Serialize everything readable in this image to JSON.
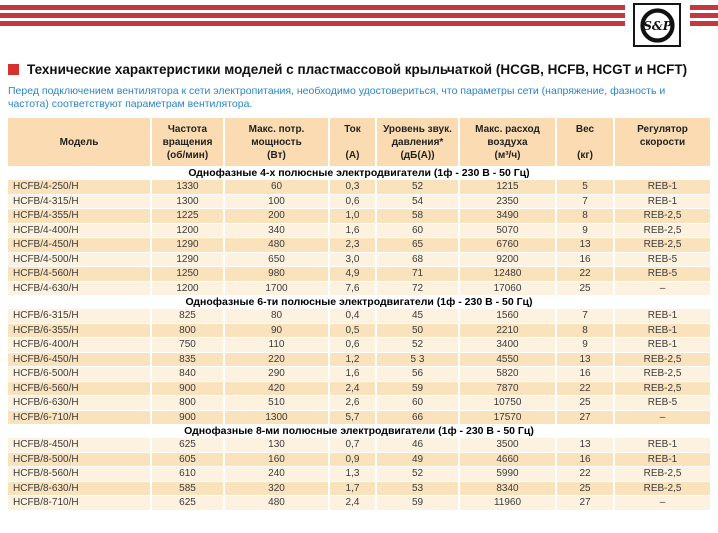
{
  "brand": {
    "logo_text": "S&P"
  },
  "header": {
    "title": "Технические характеристики моделей с пластмассовой крыльчаткой (HCGB, HCFB, HCGT и HCFT)",
    "note": "Перед подключением вентилятора к сети электропитания, необходимо удостовериться, что параметры сети (напряжение, фазность и частота) соответствуют параметрам вентилятора."
  },
  "colors": {
    "brand_red": "#c23a40",
    "bullet_red": "#d8312e",
    "note_blue": "#2b85c8",
    "table_header_bg": "#fbdcb2",
    "row_dark": "#fae2bd",
    "row_light": "#fdf2e0"
  },
  "table": {
    "columns": [
      {
        "lines": [
          "Модель"
        ]
      },
      {
        "lines": [
          "Частота",
          "вращения",
          "(об/мин)"
        ]
      },
      {
        "lines": [
          "Макс. потр.",
          "мощность",
          "(Вт)"
        ]
      },
      {
        "lines": [
          "Ток",
          "",
          "(А)"
        ]
      },
      {
        "lines": [
          "Уровень звук.",
          "давления*",
          "(дБ(А))"
        ]
      },
      {
        "lines": [
          "Макс. расход",
          "воздуха",
          "(м³/ч)"
        ]
      },
      {
        "lines": [
          "Вес",
          "",
          "(кг)"
        ]
      },
      {
        "lines": [
          "Регулятор",
          "скорости"
        ]
      }
    ],
    "sections": [
      {
        "title": "Однофазные 4-х полюсные электродвигатели (1ф - 230 В - 50 Гц)",
        "zebra_start": "dark",
        "rows": [
          [
            "HCFB/4-250/H",
            "1330",
            "60",
            "0,3",
            "52",
            "1215",
            "5",
            "REB-1"
          ],
          [
            "HCFB/4-315/H",
            "1300",
            "100",
            "0,6",
            "54",
            "2350",
            "7",
            "REB-1"
          ],
          [
            "HCFB/4-355/H",
            "1225",
            "200",
            "1,0",
            "58",
            "3490",
            "8",
            "REB-2,5"
          ],
          [
            "HCFB/4-400/H",
            "1200",
            "340",
            "1,6",
            "60",
            "5070",
            "9",
            "REB-2,5"
          ],
          [
            "HCFB/4-450/H",
            "1290",
            "480",
            "2,3",
            "65",
            "6760",
            "13",
            "REB-2,5"
          ],
          [
            "HCFB/4-500/H",
            "1290",
            "650",
            "3,0",
            "68",
            "9200",
            "16",
            "REB-5"
          ],
          [
            "HCFB/4-560/H",
            "1250",
            "980",
            "4,9",
            "71",
            "12480",
            "22",
            "REB-5"
          ],
          [
            "HCFB/4-630/H",
            "1200",
            "1700",
            "7,6",
            "72",
            "17060",
            "25",
            "–"
          ]
        ]
      },
      {
        "title": "Однофазные 6-ти полюсные электродвигатели (1ф - 230 В - 50 Гц)",
        "zebra_start": "light",
        "rows": [
          [
            "HCFB/6-315/H",
            "825",
            "80",
            "0,4",
            "45",
            "1560",
            "7",
            "REB-1"
          ],
          [
            "HCFB/6-355/H",
            "800",
            "90",
            "0,5",
            "50",
            "2210",
            "8",
            "REB-1"
          ],
          [
            "HCFB/6-400/H",
            "750",
            "110",
            "0,6",
            "52",
            "3400",
            "9",
            "REB-1"
          ],
          [
            "HCFB/6-450/H",
            "835",
            "220",
            "1,2",
            "5 3",
            "4550",
            "13",
            "REB-2,5"
          ],
          [
            "HCFB/6-500/H",
            "840",
            "290",
            "1,6",
            "56",
            "5820",
            "16",
            "REB-2,5"
          ],
          [
            "HCFB/6-560/H",
            "900",
            "420",
            "2,4",
            "59",
            "7870",
            "22",
            "REB-2,5"
          ],
          [
            "HCFB/6-630/H",
            "800",
            "510",
            "2,6",
            "60",
            "10750",
            "25",
            "REB-5"
          ],
          [
            "HCFB/6-710/H",
            "900",
            "1300",
            "5,7",
            "66",
            "17570",
            "27",
            "–"
          ]
        ]
      },
      {
        "title": "Однофазные 8-ми полюсные электродвигатели (1ф - 230 В - 50 Гц)",
        "zebra_start": "light",
        "rows": [
          [
            "HCFB/8-450/H",
            "625",
            "130",
            "0,7",
            "46",
            "3500",
            "13",
            "REB-1"
          ],
          [
            "HCFB/8-500/H",
            "605",
            "160",
            "0,9",
            "49",
            "4660",
            "16",
            "REB-1"
          ],
          [
            "HCFB/8-560/H",
            "610",
            "240",
            "1,3",
            "52",
            "5990",
            "22",
            "REB-2,5"
          ],
          [
            "HCFB/8-630/H",
            "585",
            "320",
            "1,7",
            "53",
            "8340",
            "25",
            "REB-2,5"
          ],
          [
            "HCFB/8-710/H",
            "625",
            "480",
            "2,4",
            "59",
            "11960",
            "27",
            "–"
          ]
        ]
      }
    ]
  }
}
